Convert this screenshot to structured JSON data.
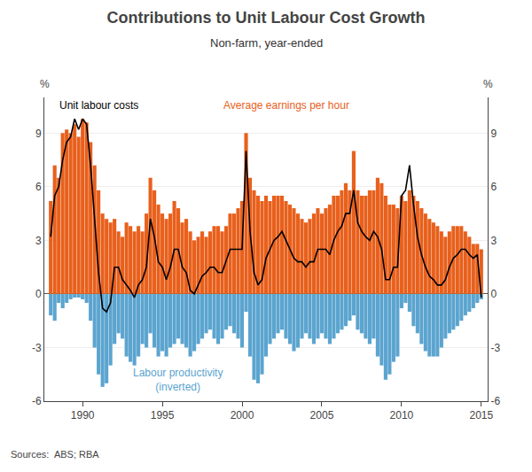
{
  "chart_data": {
    "type": "bar",
    "title": "Contributions to Unit Labour Cost Growth",
    "subtitle": "Non-farm, year-ended",
    "ylabel": "%",
    "y2label": "%",
    "source": "Sources:  ABS; RBA",
    "x": [
      1988.0,
      1988.25,
      1988.5,
      1988.75,
      1989.0,
      1989.25,
      1989.5,
      1989.75,
      1990.0,
      1990.25,
      1990.5,
      1990.75,
      1991.0,
      1991.25,
      1991.5,
      1991.75,
      1992.0,
      1992.25,
      1992.5,
      1992.75,
      1993.0,
      1993.25,
      1993.5,
      1993.75,
      1994.0,
      1994.25,
      1994.5,
      1994.75,
      1995.0,
      1995.25,
      1995.5,
      1995.75,
      1996.0,
      1996.25,
      1996.5,
      1996.75,
      1997.0,
      1997.25,
      1997.5,
      1997.75,
      1998.0,
      1998.25,
      1998.5,
      1998.75,
      1999.0,
      1999.25,
      1999.5,
      1999.75,
      2000.0,
      2000.25,
      2000.5,
      2000.75,
      2001.0,
      2001.25,
      2001.5,
      2001.75,
      2002.0,
      2002.25,
      2002.5,
      2002.75,
      2003.0,
      2003.25,
      2003.5,
      2003.75,
      2004.0,
      2004.25,
      2004.5,
      2004.75,
      2005.0,
      2005.25,
      2005.5,
      2005.75,
      2006.0,
      2006.25,
      2006.5,
      2006.75,
      2007.0,
      2007.25,
      2007.5,
      2007.75,
      2008.0,
      2008.25,
      2008.5,
      2008.75,
      2009.0,
      2009.25,
      2009.5,
      2009.75,
      2010.0,
      2010.25,
      2010.5,
      2010.75,
      2011.0,
      2011.25,
      2011.5,
      2011.75,
      2012.0,
      2012.25,
      2012.5,
      2012.75,
      2013.0,
      2013.25,
      2013.5,
      2013.75,
      2014.0,
      2014.25,
      2014.5,
      2014.75,
      2015.0
    ],
    "series": [
      {
        "name": "Average earnings per hour",
        "type": "bar",
        "color": "#E8601C",
        "values": [
          5.2,
          7.2,
          6.5,
          9.0,
          9.2,
          9.0,
          9.5,
          8.8,
          9.8,
          9.6,
          8.5,
          7.2,
          5.8,
          4.5,
          4.2,
          4.0,
          4.2,
          3.5,
          3.2,
          4.0,
          3.8,
          3.5,
          3.8,
          3.5,
          4.5,
          6.5,
          5.8,
          5.0,
          4.5,
          4.2,
          4.5,
          5.2,
          4.8,
          4.0,
          4.2,
          3.5,
          3.0,
          3.2,
          3.5,
          3.2,
          3.5,
          3.8,
          3.8,
          3.5,
          3.8,
          4.5,
          4.5,
          4.8,
          5.2,
          9.0,
          6.5,
          5.8,
          5.5,
          5.2,
          5.5,
          5.2,
          5.5,
          5.5,
          5.5,
          5.2,
          5.0,
          4.8,
          4.5,
          4.2,
          4.0,
          4.2,
          4.5,
          4.8,
          4.5,
          4.8,
          5.0,
          5.5,
          5.5,
          5.8,
          6.2,
          5.8,
          8.0,
          5.8,
          5.5,
          5.5,
          5.8,
          5.8,
          6.5,
          6.2,
          5.5,
          5.0,
          5.0,
          4.8,
          5.5,
          5.2,
          5.8,
          5.5,
          5.2,
          4.8,
          4.5,
          4.2,
          4.0,
          3.8,
          3.5,
          3.2,
          3.5,
          3.8,
          3.8,
          3.8,
          3.5,
          3.2,
          2.8,
          2.8,
          2.5
        ]
      },
      {
        "name": "Labour productivity\n(inverted)",
        "type": "bar",
        "color": "#5BA4CF",
        "values": [
          -1.2,
          -1.5,
          -0.5,
          -0.8,
          -0.5,
          -0.3,
          -0.2,
          -0.2,
          -0.3,
          -0.5,
          -1.5,
          -3.0,
          -4.5,
          -5.2,
          -5.0,
          -4.0,
          -2.8,
          -2.2,
          -2.5,
          -3.5,
          -3.8,
          -4.0,
          -3.5,
          -2.8,
          -3.0,
          -2.2,
          -3.0,
          -3.5,
          -3.2,
          -3.5,
          -3.0,
          -2.8,
          -2.5,
          -2.8,
          -3.0,
          -3.5,
          -3.2,
          -2.8,
          -2.5,
          -2.2,
          -2.0,
          -2.5,
          -2.8,
          -2.5,
          -2.0,
          -1.8,
          -2.2,
          -2.5,
          -3.0,
          -1.0,
          -3.5,
          -4.8,
          -5.0,
          -4.5,
          -3.5,
          -2.8,
          -2.5,
          -2.2,
          -2.0,
          -2.5,
          -2.8,
          -3.2,
          -3.0,
          -2.5,
          -2.2,
          -2.5,
          -2.8,
          -2.5,
          -2.2,
          -2.5,
          -2.8,
          -2.5,
          -2.2,
          -2.0,
          -1.8,
          -1.5,
          -1.2,
          -2.0,
          -2.2,
          -2.5,
          -2.8,
          -2.5,
          -3.5,
          -4.0,
          -4.8,
          -4.5,
          -3.8,
          -3.5,
          -0.8,
          -0.5,
          -1.0,
          -1.8,
          -2.2,
          -2.8,
          -3.2,
          -3.5,
          -3.5,
          -3.5,
          -3.0,
          -2.5,
          -2.2,
          -2.0,
          -1.8,
          -1.5,
          -1.2,
          -1.0,
          -0.8,
          -0.5,
          -0.3
        ]
      },
      {
        "name": "Unit labour costs",
        "type": "line",
        "color": "#000000",
        "values": [
          3.2,
          5.5,
          6.0,
          7.5,
          8.5,
          8.8,
          9.8,
          9.2,
          9.8,
          9.5,
          7.2,
          4.2,
          1.2,
          -0.8,
          -1.0,
          -0.5,
          1.5,
          1.5,
          0.8,
          0.5,
          0.2,
          -0.2,
          0.5,
          0.8,
          1.5,
          4.2,
          3.2,
          1.8,
          1.5,
          0.8,
          1.5,
          2.5,
          2.5,
          1.5,
          1.2,
          0.2,
          0.0,
          0.5,
          1.0,
          1.2,
          1.5,
          1.5,
          1.2,
          1.2,
          1.8,
          2.5,
          2.5,
          2.5,
          2.5,
          8.0,
          3.5,
          1.2,
          0.5,
          0.8,
          2.0,
          2.5,
          3.0,
          3.2,
          3.5,
          3.0,
          2.5,
          2.0,
          1.8,
          1.8,
          1.5,
          1.8,
          1.8,
          2.5,
          2.5,
          2.5,
          2.2,
          3.0,
          3.5,
          3.8,
          4.5,
          4.5,
          5.8,
          4.0,
          3.5,
          3.2,
          3.0,
          3.5,
          3.2,
          2.5,
          0.8,
          0.8,
          1.5,
          1.5,
          5.5,
          5.8,
          7.2,
          5.0,
          3.2,
          2.2,
          1.5,
          1.0,
          0.8,
          0.5,
          0.5,
          0.8,
          1.5,
          2.0,
          2.2,
          2.5,
          2.5,
          2.2,
          2.0,
          2.2,
          -0.2
        ]
      }
    ],
    "xlim": [
      1987.6,
      2015.4
    ],
    "xticks": [
      1990,
      1995,
      2000,
      2005,
      2010,
      2015
    ],
    "ylim": [
      -6,
      11
    ],
    "yticks": [
      -6,
      -3,
      0,
      3,
      6,
      9
    ],
    "y2lim": [
      -6,
      11
    ],
    "y2ticks": [
      -6,
      -3,
      0,
      3,
      6,
      9
    ],
    "grid": true
  }
}
